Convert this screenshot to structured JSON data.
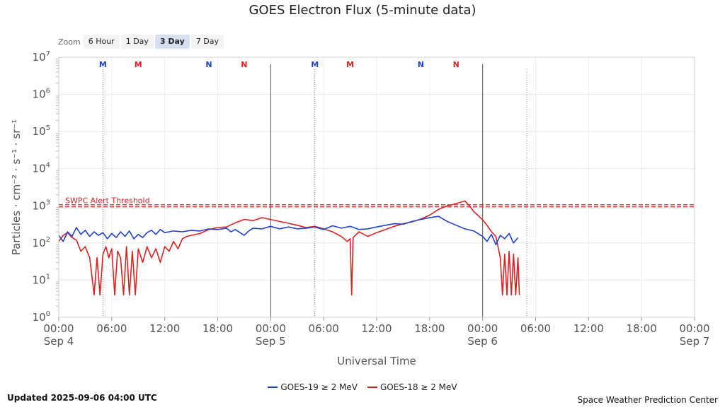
{
  "chart_data": {
    "type": "line",
    "title": "GOES Electron Flux (5-minute data)",
    "xlabel": "Universal Time",
    "ylabel": "Particles · cm⁻² · s⁻¹ · sr⁻¹",
    "y_scale": "log",
    "ylim": [
      1,
      10000000
    ],
    "y_ticks": [
      {
        "value": 1,
        "base": "10",
        "exp": "0"
      },
      {
        "value": 10,
        "base": "10",
        "exp": "1"
      },
      {
        "value": 100,
        "base": "10",
        "exp": "2"
      },
      {
        "value": 1000,
        "base": "10",
        "exp": "3"
      },
      {
        "value": 10000,
        "base": "10",
        "exp": "4"
      },
      {
        "value": 100000,
        "base": "10",
        "exp": "5"
      },
      {
        "value": 1000000,
        "base": "10",
        "exp": "6"
      },
      {
        "value": 10000000,
        "base": "10",
        "exp": "7"
      }
    ],
    "xlim": [
      "2025-09-04 00:00",
      "2025-09-07 00:00"
    ],
    "x_ticks": [
      {
        "time": "2025-09-04 00:00",
        "label": "00:00",
        "sublabel": "Sep 4"
      },
      {
        "time": "2025-09-04 06:00",
        "label": "06:00",
        "sublabel": ""
      },
      {
        "time": "2025-09-04 12:00",
        "label": "12:00",
        "sublabel": ""
      },
      {
        "time": "2025-09-04 18:00",
        "label": "18:00",
        "sublabel": ""
      },
      {
        "time": "2025-09-05 00:00",
        "label": "00:00",
        "sublabel": "Sep 5"
      },
      {
        "time": "2025-09-05 06:00",
        "label": "06:00",
        "sublabel": ""
      },
      {
        "time": "2025-09-05 12:00",
        "label": "12:00",
        "sublabel": ""
      },
      {
        "time": "2025-09-05 18:00",
        "label": "18:00",
        "sublabel": ""
      },
      {
        "time": "2025-09-06 00:00",
        "label": "00:00",
        "sublabel": "Sep 6"
      },
      {
        "time": "2025-09-06 06:00",
        "label": "06:00",
        "sublabel": ""
      },
      {
        "time": "2025-09-06 12:00",
        "label": "12:00",
        "sublabel": ""
      },
      {
        "time": "2025-09-06 18:00",
        "label": "18:00",
        "sublabel": ""
      },
      {
        "time": "2025-09-07 00:00",
        "label": "00:00",
        "sublabel": "Sep 7"
      }
    ],
    "grid": true,
    "day_boundaries": [
      "2025-09-05 00:00",
      "2025-09-06 00:00"
    ],
    "threshold": {
      "label": "SWPC Alert Threshold",
      "value": 1000,
      "color": "#d62728"
    },
    "markers": [
      {
        "time": "2025-09-04 05:00",
        "label": "M",
        "color": "#1f3fd6"
      },
      {
        "time": "2025-09-04 09:00",
        "label": "M",
        "color": "#e02020"
      },
      {
        "time": "2025-09-04 17:00",
        "label": "N",
        "color": "#1f3fd6"
      },
      {
        "time": "2025-09-04 21:00",
        "label": "N",
        "color": "#e02020"
      },
      {
        "time": "2025-09-05 05:00",
        "label": "M",
        "color": "#1f3fd6"
      },
      {
        "time": "2025-09-05 09:00",
        "label": "M",
        "color": "#e02020"
      },
      {
        "time": "2025-09-05 17:00",
        "label": "N",
        "color": "#1f3fd6"
      },
      {
        "time": "2025-09-05 21:00",
        "label": "N",
        "color": "#e02020"
      }
    ],
    "local_midnight_lines": [
      "2025-09-04 05:00",
      "2025-09-05 05:00",
      "2025-09-06 05:00"
    ],
    "legend_placement": "bottom",
    "series": [
      {
        "name": "GOES-19 ≥ 2 MeV",
        "color": "#1f3fd6",
        "points": [
          [
            "2025-09-04 00:00",
            160
          ],
          [
            "2025-09-04 00:30",
            110
          ],
          [
            "2025-09-04 01:00",
            200
          ],
          [
            "2025-09-04 01:30",
            150
          ],
          [
            "2025-09-04 02:00",
            260
          ],
          [
            "2025-09-04 02:30",
            170
          ],
          [
            "2025-09-04 03:00",
            220
          ],
          [
            "2025-09-04 03:30",
            150
          ],
          [
            "2025-09-04 04:00",
            200
          ],
          [
            "2025-09-04 04:30",
            160
          ],
          [
            "2025-09-04 05:00",
            190
          ],
          [
            "2025-09-04 05:30",
            130
          ],
          [
            "2025-09-04 06:00",
            180
          ],
          [
            "2025-09-04 06:30",
            140
          ],
          [
            "2025-09-04 07:00",
            200
          ],
          [
            "2025-09-04 07:30",
            150
          ],
          [
            "2025-09-04 08:00",
            210
          ],
          [
            "2025-09-04 08:30",
            130
          ],
          [
            "2025-09-04 09:00",
            170
          ],
          [
            "2025-09-04 09:30",
            140
          ],
          [
            "2025-09-04 10:00",
            190
          ],
          [
            "2025-09-04 10:30",
            220
          ],
          [
            "2025-09-04 11:00",
            170
          ],
          [
            "2025-09-04 11:30",
            230
          ],
          [
            "2025-09-04 12:00",
            190
          ],
          [
            "2025-09-04 13:00",
            210
          ],
          [
            "2025-09-04 14:00",
            200
          ],
          [
            "2025-09-04 15:00",
            220
          ],
          [
            "2025-09-04 16:00",
            210
          ],
          [
            "2025-09-04 17:00",
            240
          ],
          [
            "2025-09-04 18:00",
            230
          ],
          [
            "2025-09-04 19:00",
            250
          ],
          [
            "2025-09-04 19:30",
            200
          ],
          [
            "2025-09-04 20:00",
            230
          ],
          [
            "2025-09-04 21:00",
            160
          ],
          [
            "2025-09-04 21:30",
            210
          ],
          [
            "2025-09-04 22:00",
            250
          ],
          [
            "2025-09-04 23:00",
            240
          ],
          [
            "2025-09-05 00:00",
            280
          ],
          [
            "2025-09-05 01:00",
            240
          ],
          [
            "2025-09-05 02:00",
            270
          ],
          [
            "2025-09-05 03:00",
            240
          ],
          [
            "2025-09-05 04:00",
            250
          ],
          [
            "2025-09-05 05:00",
            270
          ],
          [
            "2025-09-05 06:00",
            230
          ],
          [
            "2025-09-05 07:00",
            290
          ],
          [
            "2025-09-05 08:00",
            250
          ],
          [
            "2025-09-05 09:00",
            280
          ],
          [
            "2025-09-05 10:00",
            230
          ],
          [
            "2025-09-05 11:00",
            240
          ],
          [
            "2025-09-05 12:00",
            270
          ],
          [
            "2025-09-05 13:00",
            300
          ],
          [
            "2025-09-05 14:00",
            330
          ],
          [
            "2025-09-05 15:00",
            320
          ],
          [
            "2025-09-05 16:00",
            380
          ],
          [
            "2025-09-05 17:00",
            430
          ],
          [
            "2025-09-05 18:00",
            480
          ],
          [
            "2025-09-05 19:00",
            520
          ],
          [
            "2025-09-05 20:00",
            380
          ],
          [
            "2025-09-05 21:00",
            300
          ],
          [
            "2025-09-05 22:00",
            240
          ],
          [
            "2025-09-05 23:00",
            210
          ],
          [
            "2025-09-06 00:00",
            150
          ],
          [
            "2025-09-06 00:30",
            110
          ],
          [
            "2025-09-06 01:00",
            170
          ],
          [
            "2025-09-06 01:30",
            90
          ],
          [
            "2025-09-06 02:00",
            160
          ],
          [
            "2025-09-06 02:30",
            130
          ],
          [
            "2025-09-06 03:00",
            180
          ],
          [
            "2025-09-06 03:30",
            100
          ],
          [
            "2025-09-06 04:00",
            140
          ]
        ]
      },
      {
        "name": "GOES-18 ≥ 2 MeV",
        "color": "#e02020",
        "points": [
          [
            "2025-09-04 00:00",
            110
          ],
          [
            "2025-09-04 00:30",
            160
          ],
          [
            "2025-09-04 01:00",
            190
          ],
          [
            "2025-09-04 01:30",
            140
          ],
          [
            "2025-09-04 02:00",
            120
          ],
          [
            "2025-09-04 02:30",
            60
          ],
          [
            "2025-09-04 03:00",
            80
          ],
          [
            "2025-09-04 03:30",
            40
          ],
          [
            "2025-09-04 04:00",
            4
          ],
          [
            "2025-09-04 04:20",
            40
          ],
          [
            "2025-09-04 04:40",
            4
          ],
          [
            "2025-09-04 05:00",
            50
          ],
          [
            "2025-09-04 05:20",
            80
          ],
          [
            "2025-09-04 05:40",
            40
          ],
          [
            "2025-09-04 06:00",
            70
          ],
          [
            "2025-09-04 06:20",
            4
          ],
          [
            "2025-09-04 06:40",
            60
          ],
          [
            "2025-09-04 07:00",
            40
          ],
          [
            "2025-09-04 07:20",
            4
          ],
          [
            "2025-09-04 07:40",
            80
          ],
          [
            "2025-09-04 08:00",
            4
          ],
          [
            "2025-09-04 08:20",
            60
          ],
          [
            "2025-09-04 08:40",
            4
          ],
          [
            "2025-09-04 09:00",
            70
          ],
          [
            "2025-09-04 09:30",
            30
          ],
          [
            "2025-09-04 10:00",
            80
          ],
          [
            "2025-09-04 10:30",
            40
          ],
          [
            "2025-09-04 11:00",
            70
          ],
          [
            "2025-09-04 11:30",
            30
          ],
          [
            "2025-09-04 12:00",
            80
          ],
          [
            "2025-09-04 12:30",
            60
          ],
          [
            "2025-09-04 13:00",
            110
          ],
          [
            "2025-09-04 13:30",
            70
          ],
          [
            "2025-09-04 14:00",
            130
          ],
          [
            "2025-09-04 14:30",
            150
          ],
          [
            "2025-09-04 15:00",
            160
          ],
          [
            "2025-09-04 16:00",
            180
          ],
          [
            "2025-09-04 17:00",
            230
          ],
          [
            "2025-09-04 18:00",
            260
          ],
          [
            "2025-09-04 19:00",
            270
          ],
          [
            "2025-09-04 20:00",
            350
          ],
          [
            "2025-09-04 21:00",
            430
          ],
          [
            "2025-09-04 22:00",
            400
          ],
          [
            "2025-09-04 23:00",
            480
          ],
          [
            "2025-09-05 00:00",
            430
          ],
          [
            "2025-09-05 01:00",
            380
          ],
          [
            "2025-09-05 02:00",
            340
          ],
          [
            "2025-09-05 03:00",
            300
          ],
          [
            "2025-09-05 04:00",
            260
          ],
          [
            "2025-09-05 05:00",
            280
          ],
          [
            "2025-09-05 06:00",
            240
          ],
          [
            "2025-09-05 07:00",
            200
          ],
          [
            "2025-09-05 08:00",
            150
          ],
          [
            "2025-09-05 08:40",
            110
          ],
          [
            "2025-09-05 09:00",
            130
          ],
          [
            "2025-09-05 09:10",
            4
          ],
          [
            "2025-09-05 09:20",
            140
          ],
          [
            "2025-09-05 10:00",
            200
          ],
          [
            "2025-09-05 11:00",
            150
          ],
          [
            "2025-09-05 12:00",
            190
          ],
          [
            "2025-09-05 13:00",
            230
          ],
          [
            "2025-09-05 14:00",
            280
          ],
          [
            "2025-09-05 15:00",
            330
          ],
          [
            "2025-09-05 16:00",
            370
          ],
          [
            "2025-09-05 17:00",
            440
          ],
          [
            "2025-09-05 18:00",
            560
          ],
          [
            "2025-09-05 19:00",
            800
          ],
          [
            "2025-09-05 20:00",
            1000
          ],
          [
            "2025-09-05 21:00",
            1150
          ],
          [
            "2025-09-05 22:00",
            1350
          ],
          [
            "2025-09-05 22:30",
            1000
          ],
          [
            "2025-09-05 23:00",
            700
          ],
          [
            "2025-09-06 00:00",
            420
          ],
          [
            "2025-09-06 00:30",
            300
          ],
          [
            "2025-09-06 01:00",
            200
          ],
          [
            "2025-09-06 01:30",
            150
          ],
          [
            "2025-09-06 02:00",
            40
          ],
          [
            "2025-09-06 02:15",
            4
          ],
          [
            "2025-09-06 02:30",
            50
          ],
          [
            "2025-09-06 02:45",
            4
          ],
          [
            "2025-09-06 03:00",
            60
          ],
          [
            "2025-09-06 03:15",
            4
          ],
          [
            "2025-09-06 03:30",
            50
          ],
          [
            "2025-09-06 03:45",
            4
          ],
          [
            "2025-09-06 04:00",
            40
          ],
          [
            "2025-09-06 04:10",
            4
          ]
        ]
      }
    ]
  },
  "zoom": {
    "label": "Zoom",
    "buttons": [
      "6 Hour",
      "1 Day",
      "3 Day",
      "7 Day"
    ],
    "active": "3 Day"
  },
  "footer": {
    "updated": "Updated 2025-09-06 04:00 UTC",
    "source": "Space Weather Prediction Center"
  }
}
